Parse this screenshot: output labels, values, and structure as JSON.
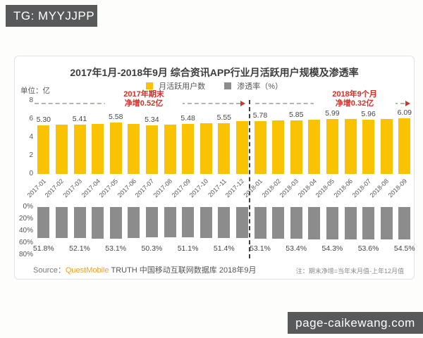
{
  "overlay": {
    "tg_label": "TG: MYYJJPP",
    "watermark": "page-caikewang.com"
  },
  "chart_data": {
    "type": "bar",
    "title": "2017年1月-2018年9月 综合资讯APP行业月活跃用户规模及渗透率",
    "unit_label": "单位：亿",
    "legend": [
      {
        "label": "月活跃用户数",
        "color": "#f9c301"
      },
      {
        "label": "渗透率（%）",
        "color": "#8c8c8c"
      }
    ],
    "categories": [
      "2017-01",
      "2017-02",
      "2017-03",
      "2017-04",
      "2017-05",
      "2017-06",
      "2017-07",
      "2017-08",
      "2017-09",
      "2017-10",
      "2017-11",
      "2017-12",
      "2018-01",
      "2018-02",
      "2018-03",
      "2018-04",
      "2018-05",
      "2018-06",
      "2018-07",
      "2018-08",
      "2018-09"
    ],
    "series": [
      {
        "name": "月活跃用户数",
        "unit": "亿",
        "color": "#f9c301",
        "ylim": [
          0,
          8
        ],
        "ticks": [
          "8",
          "6",
          "4",
          "2",
          "0"
        ],
        "values": [
          5.3,
          5.36,
          5.41,
          5.49,
          5.58,
          5.46,
          5.34,
          5.42,
          5.48,
          5.52,
          5.55,
          5.77,
          5.78,
          5.81,
          5.85,
          5.92,
          5.99,
          5.98,
          5.96,
          6.02,
          6.09
        ],
        "value_labels": [
          "5.30",
          null,
          "5.41",
          null,
          "5.58",
          null,
          "5.34",
          null,
          "5.48",
          null,
          "5.55",
          null,
          "5.78",
          null,
          "5.85",
          null,
          "5.99",
          null,
          "5.96",
          null,
          "6.09"
        ]
      },
      {
        "name": "渗透率（%）",
        "unit": "%",
        "color": "#8c8c8c",
        "ylim": [
          0,
          80
        ],
        "inverted": true,
        "ticks": [
          "0%",
          "20%",
          "40%",
          "60%",
          "80%"
        ],
        "values": [
          51.8,
          52.0,
          52.1,
          52.6,
          53.1,
          52.0,
          50.3,
          50.7,
          51.1,
          51.2,
          51.4,
          52.3,
          53.1,
          53.2,
          53.4,
          53.8,
          54.3,
          54.0,
          53.6,
          54.0,
          54.5
        ],
        "value_labels": [
          "51.8%",
          null,
          "52.1%",
          null,
          "53.1%",
          null,
          "50.3%",
          null,
          "51.1%",
          null,
          "51.4%",
          null,
          "53.1%",
          null,
          "53.4%",
          null,
          "54.3%",
          null,
          "53.6%",
          null,
          "54.5%"
        ]
      }
    ],
    "annotations": {
      "left": {
        "line1": "2017年期末",
        "line2": "净增0.52亿"
      },
      "right": {
        "line1": "2018年9个月",
        "line2": "净增0.32亿"
      },
      "divider_between": [
        "2017-12",
        "2018-01"
      ]
    },
    "source_prefix": "Source：",
    "source_brand": "QuestMobile",
    "source_rest": " TRUTH 中国移动互联网数据库 2018年9月",
    "footnote": "注：期末净增=当年末月值-上年12月值",
    "legend_position": "top",
    "grid": false,
    "accent_red": "#d03028"
  }
}
